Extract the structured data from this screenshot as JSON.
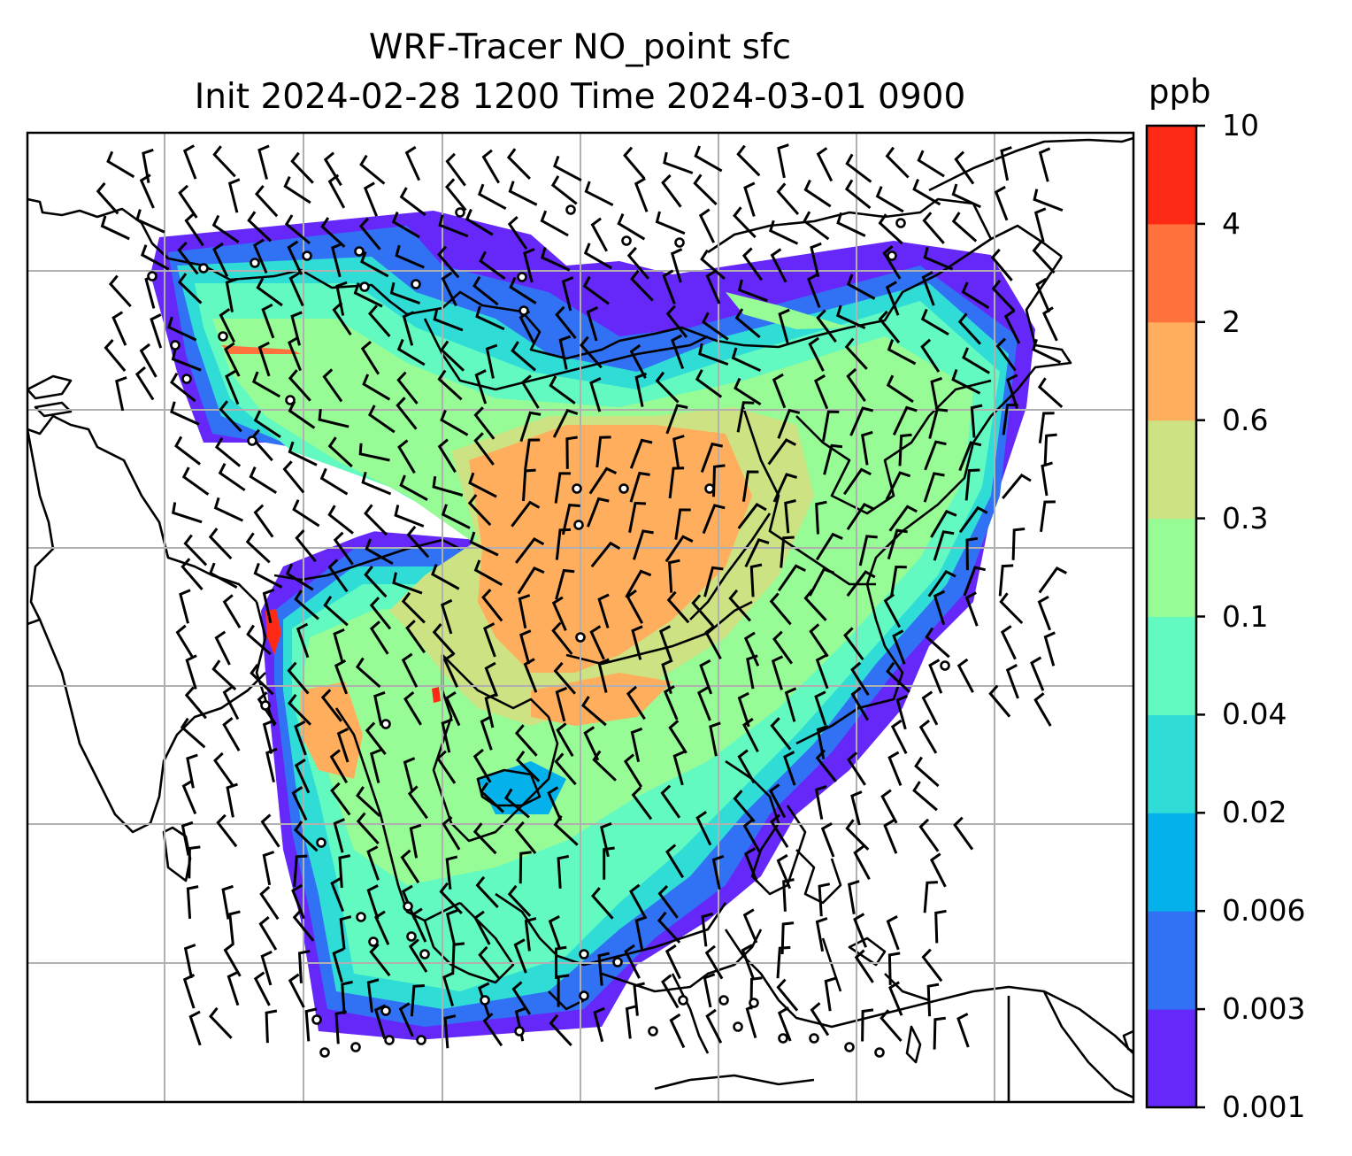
{
  "title": {
    "line1": "WRF-Tracer NO_point sfc",
    "line2": "Init 2024-02-28 1200 Time 2024-03-01 0900"
  },
  "colorbar": {
    "unit": "ppb",
    "ticks": [
      "0.001",
      "0.003",
      "0.006",
      "0.02",
      "0.04",
      "0.1",
      "0.3",
      "0.6",
      "2",
      "4",
      "10"
    ],
    "colors": [
      "#6528f8",
      "#3172f4",
      "#05b1eb",
      "#2fddd6",
      "#63fac1",
      "#97fb96",
      "#cde282",
      "#ffae5e",
      "#ff723b",
      "#ff2a15"
    ]
  },
  "map": {
    "projection": "Mercator",
    "gridlines": true,
    "gridline_color": "#b0b0b0",
    "coastline_color": "#000000",
    "field": "NO_point tracer concentration (ppb)",
    "overlay": "wind barbs"
  }
}
